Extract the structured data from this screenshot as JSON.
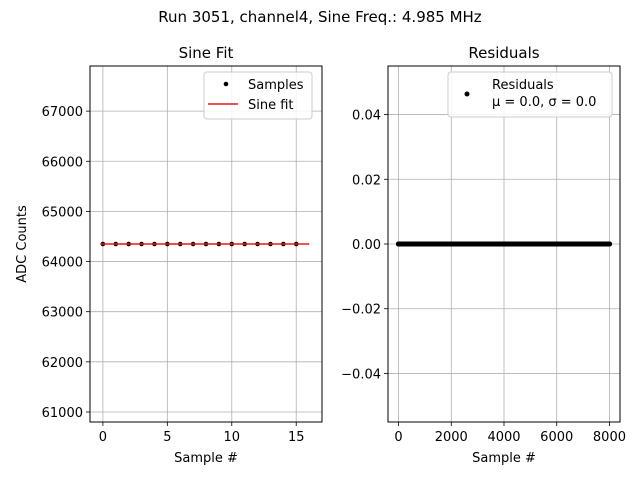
{
  "figure": {
    "suptitle": "Run 3051, channel4, Sine Freq.: 4.985 MHz"
  },
  "chart_data": [
    {
      "type": "scatter",
      "title": "Sine Fit",
      "xlabel": "Sample #",
      "ylabel": "ADC Counts",
      "xlim": [
        -1,
        17
      ],
      "ylim": [
        60800,
        67900
      ],
      "xticks": [
        0,
        5,
        10,
        15
      ],
      "yticks": [
        61000,
        62000,
        63000,
        64000,
        65000,
        66000,
        67000
      ],
      "grid": true,
      "legend_position": "top-right",
      "series": [
        {
          "name": "Samples",
          "kind": "points",
          "color": "#000000",
          "x": [
            0,
            1,
            2,
            3,
            4,
            5,
            6,
            7,
            8,
            9,
            10,
            11,
            12,
            13,
            14,
            15
          ],
          "y": [
            64350,
            64350,
            64350,
            64350,
            64350,
            64350,
            64350,
            64350,
            64350,
            64350,
            64350,
            64350,
            64350,
            64350,
            64350,
            64350
          ]
        },
        {
          "name": "Sine fit",
          "kind": "line",
          "color": "#e41a1c",
          "x": [
            -0.2,
            16
          ],
          "y": [
            64350,
            64350
          ]
        }
      ]
    },
    {
      "type": "scatter",
      "title": "Residuals",
      "xlabel": "Sample #",
      "ylabel": "",
      "xlim": [
        -400,
        8400
      ],
      "ylim": [
        -0.055,
        0.055
      ],
      "xticks": [
        0,
        2000,
        4000,
        6000,
        8000
      ],
      "yticks": [
        -0.04,
        -0.02,
        0.0,
        0.02,
        0.04
      ],
      "ytick_labels": [
        "−0.04",
        "−0.02",
        "0.00",
        "0.02",
        "0.04"
      ],
      "grid": true,
      "legend_position": "top-right",
      "series": [
        {
          "name": "Residuals",
          "name_line2": "μ = 0.0, σ = 0.0",
          "kind": "points",
          "color": "#000000",
          "x_start": 0,
          "x_end": 8000,
          "y_value": 0.0
        }
      ]
    }
  ]
}
